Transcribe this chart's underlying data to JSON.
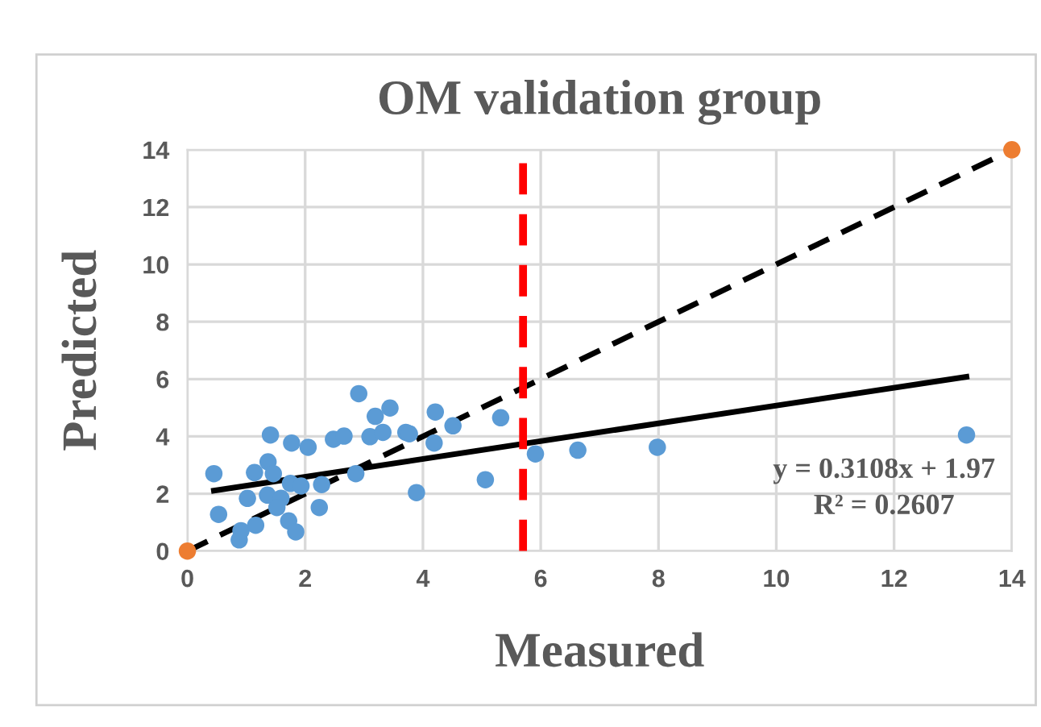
{
  "chart_data": {
    "type": "scatter",
    "title": "OM validation group",
    "xlabel": "Measured",
    "ylabel": "Predicted",
    "xlim": [
      0,
      14
    ],
    "xticks": [
      0,
      2,
      4,
      6,
      8,
      10,
      12,
      14
    ],
    "ylim": [
      0,
      14
    ],
    "yticks": [
      0,
      2,
      4,
      6,
      8,
      10,
      12,
      14
    ],
    "grid": true,
    "series": [
      {
        "marker": "circle",
        "color": "#5b9bd5",
        "x": [
          0.45,
          0.53,
          0.88,
          0.91,
          1.16,
          1.02,
          1.14,
          1.37,
          1.41,
          1.46,
          1.36,
          1.59,
          1.75,
          1.77,
          1.72,
          1.84,
          1.52,
          1.93,
          2.05,
          2.28,
          2.24,
          2.48,
          2.66,
          2.86,
          2.91,
          3.1,
          3.19,
          3.32,
          3.44,
          3.71,
          3.77,
          3.89,
          4.19,
          4.21,
          4.51,
          5.06,
          5.32,
          5.91,
          6.63,
          7.98,
          13.23
        ],
        "values": [
          2.7,
          1.28,
          0.39,
          0.71,
          0.9,
          1.84,
          2.74,
          3.11,
          4.05,
          2.7,
          1.95,
          1.84,
          2.36,
          3.77,
          1.05,
          0.67,
          1.52,
          2.27,
          3.62,
          2.32,
          1.52,
          3.9,
          4.01,
          2.7,
          5.49,
          3.99,
          4.7,
          4.14,
          4.99,
          4.14,
          4.09,
          2.04,
          3.77,
          4.85,
          4.37,
          2.49,
          4.65,
          3.39,
          3.52,
          3.62,
          4.05
        ]
      },
      {
        "marker": "circle",
        "color": "#ed7d31",
        "x": [
          0,
          14
        ],
        "values": [
          0,
          14
        ]
      },
      {
        "type": "line",
        "marker": "none",
        "color": "#000000",
        "line_style": "dashed",
        "x": [
          0,
          14
        ],
        "values": [
          0,
          14
        ]
      },
      {
        "type": "line",
        "marker": "none",
        "color": "#000000",
        "line_style": "solid",
        "x": [
          0.45,
          13.23
        ],
        "values": [
          2.11,
          6.08
        ]
      }
    ],
    "ref_lines": [
      {
        "axis": "x",
        "value": 5.7,
        "color": "#ff0000",
        "line_style": "dashed"
      }
    ],
    "annotations": [
      "y = 0.3108x + 1.97",
      "R² = 0.2607"
    ]
  }
}
